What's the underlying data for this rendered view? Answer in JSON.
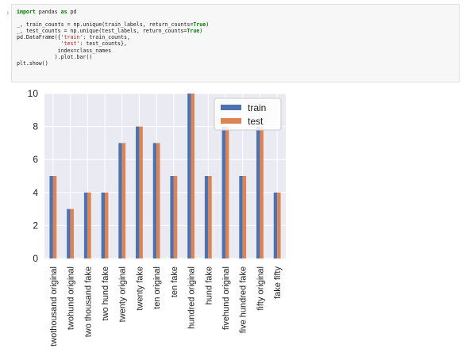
{
  "notebook": {
    "prompt": ":",
    "code_lines": [
      [
        {
          "t": "import",
          "c": "kw"
        },
        {
          "t": " pandas "
        },
        {
          "t": "as",
          "c": "kw"
        },
        {
          "t": " pd"
        }
      ],
      [
        {
          "t": ""
        }
      ],
      [
        {
          "t": "_, train_counts = np.unique(train_labels, return_counts="
        },
        {
          "t": "True",
          "c": "bool"
        },
        {
          "t": ")"
        }
      ],
      [
        {
          "t": "_, test_counts = np.unique(test_labels, return_counts="
        },
        {
          "t": "True",
          "c": "bool"
        },
        {
          "t": ")"
        }
      ],
      [
        {
          "t": "pd.DataFrame({"
        },
        {
          "t": "'train'",
          "c": "str"
        },
        {
          "t": ": train_counts,"
        }
      ],
      [
        {
          "t": "              "
        },
        {
          "t": "'test'",
          "c": "str"
        },
        {
          "t": ": test_counts},"
        }
      ],
      [
        {
          "t": "             index=class_names"
        }
      ],
      [
        {
          "t": "            ).plot.bar()"
        }
      ],
      [
        {
          "t": "plt.show()"
        }
      ]
    ]
  },
  "chart_data": {
    "type": "bar",
    "categories": [
      "twothousand original",
      "twohund original",
      "two thousand fake",
      "two hund fake",
      "twenty original",
      "twenty fake",
      "ten original",
      "ten fake",
      "hundred original",
      "hund fake",
      "fivehund original",
      "five hundred fake",
      "fifty original",
      "fake fifty"
    ],
    "series": [
      {
        "name": "train",
        "color": "#4c72b0",
        "values": [
          5,
          3,
          4,
          4,
          7,
          8,
          7,
          5,
          10,
          5,
          8,
          5,
          8,
          4
        ]
      },
      {
        "name": "test",
        "color": "#dd8452",
        "values": [
          5,
          3,
          4,
          4,
          7,
          8,
          7,
          5,
          10,
          5,
          8,
          5,
          8,
          4
        ]
      }
    ],
    "ylim": [
      0,
      10
    ],
    "yticks": [
      0,
      2,
      4,
      6,
      8,
      10
    ],
    "grid": true,
    "legend_position": "top-right",
    "background": "#eaeaf2"
  }
}
